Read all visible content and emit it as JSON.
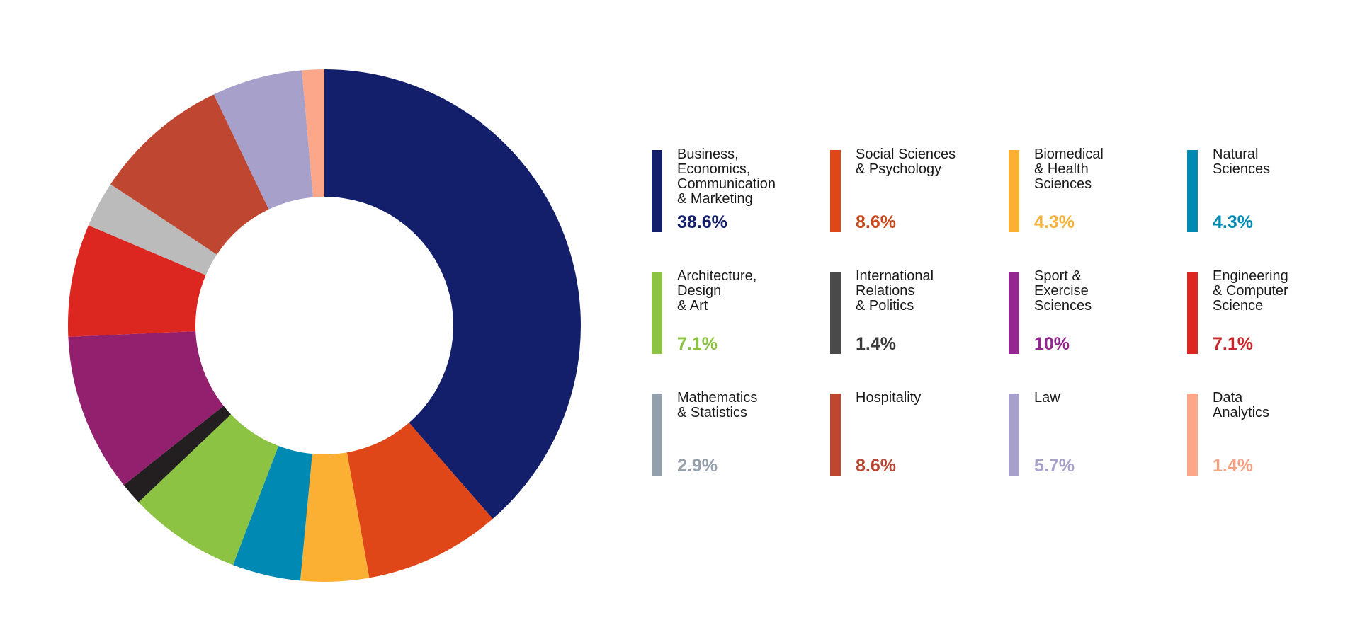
{
  "chart_data": {
    "type": "pie",
    "title": "",
    "slices": [
      {
        "label": "Business, Economics, Communication & Marketing",
        "value": 38.6,
        "value_label": "38.6%",
        "color": "#131f6b"
      },
      {
        "label": "Social Sciences & Psychology",
        "value": 8.6,
        "value_label": "8.6%",
        "color": "#e04718"
      },
      {
        "label": "Biomedical & Health Sciences",
        "value": 4.3,
        "value_label": "4.3%",
        "color": "#fbb034"
      },
      {
        "label": "Natural Sciences",
        "value": 4.3,
        "value_label": "4.3%",
        "color": "#0089b3"
      },
      {
        "label": "Architecture, Design & Art",
        "value": 7.1,
        "value_label": "7.1%",
        "color": "#8cc342"
      },
      {
        "label": "International Relations & Politics",
        "value": 1.4,
        "value_label": "1.4%",
        "color": "#231f20"
      },
      {
        "label": "Sport & Exercise Sciences",
        "value": 10,
        "value_label": "10%",
        "color": "#93206e"
      },
      {
        "label": "Engineering & Computer Science",
        "value": 7.1,
        "value_label": "7.1%",
        "color": "#dc2720"
      },
      {
        "label": "Mathematics & Statistics",
        "value": 2.9,
        "value_label": "2.9%",
        "color": "#bbbbbb"
      },
      {
        "label": "Hospitality",
        "value": 8.6,
        "value_label": "8.6%",
        "color": "#bf4630"
      },
      {
        "label": "Law",
        "value": 5.7,
        "value_label": "5.7%",
        "color": "#a6a0cb"
      },
      {
        "label": "Data Analytics",
        "value": 1.4,
        "value_label": "1.4%",
        "color": "#fca68a"
      }
    ],
    "legend": [
      {
        "lines": "Business,\nEconomics,\nCommunication\n& Marketing",
        "value": "38.6%",
        "swatch_color": "#131f6b",
        "text_color": "#131f6b"
      },
      {
        "lines": "Social Sciences\n& Psychology",
        "value": "8.6%",
        "swatch_color": "#e04718",
        "text_color": "#c9471c"
      },
      {
        "lines": "Biomedical\n& Health\nSciences",
        "value": "4.3%",
        "swatch_color": "#fbb034",
        "text_color": "#f5b23a"
      },
      {
        "lines": "Natural\nSciences",
        "value": "4.3%",
        "swatch_color": "#0089b3",
        "text_color": "#0089b3"
      },
      {
        "lines": "Architecture,\nDesign\n& Art",
        "value": "7.1%",
        "swatch_color": "#8cc342",
        "text_color": "#8cc342"
      },
      {
        "lines": "International\nRelations\n& Politics",
        "value": "1.4%",
        "swatch_color": "#4a4a4a",
        "text_color": "#3a3a3a"
      },
      {
        "lines": "Sport &\nExercise\nSciences",
        "value": "10%",
        "swatch_color": "#93268f",
        "text_color": "#93268f"
      },
      {
        "lines": "Engineering\n& Computer\nScience",
        "value": "7.1%",
        "swatch_color": "#dc2720",
        "text_color": "#c8262b"
      },
      {
        "lines": "Mathematics\n& Statistics",
        "value": "2.9%",
        "swatch_color": "#939fab",
        "text_color": "#939fab"
      },
      {
        "lines": "Hospitality",
        "value": "8.6%",
        "swatch_color": "#bf4630",
        "text_color": "#b94632"
      },
      {
        "lines": "Law",
        "value": "5.7%",
        "swatch_color": "#a6a0cb",
        "text_color": "#a6a0cb"
      },
      {
        "lines": "Data\nAnalytics",
        "value": "1.4%",
        "swatch_color": "#fca68a",
        "text_color": "#f7a184"
      }
    ],
    "legend_placement": "right",
    "legend_columns": 4
  }
}
